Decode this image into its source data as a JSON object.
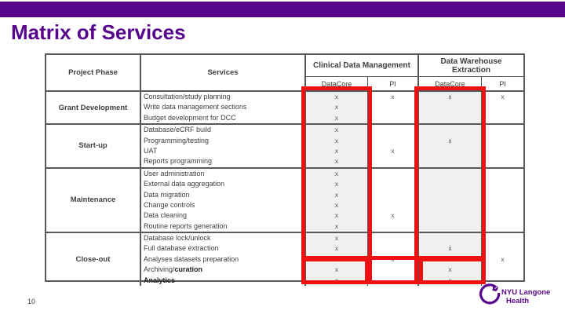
{
  "slide": {
    "title": "Matrix of Services",
    "page_number": "10",
    "brand_purple": "#57068C",
    "highlight_red": "#EE1111"
  },
  "logo": {
    "line1": "NYU Langone",
    "line2": "Health"
  },
  "table": {
    "headers": {
      "project_phase": "Project Phase",
      "services": "Services",
      "clinical_data_management": "Clinical Data Management",
      "data_warehouse_extraction": "Data Warehouse Extraction",
      "sub_columns": [
        "DataCore",
        "PI",
        "DataCore",
        "PI"
      ]
    },
    "mark_symbol": "x",
    "sections": [
      {
        "phase": "Grant Development",
        "rows": [
          {
            "service": "Consultation/study planning",
            "marks": [
              "x",
              "x",
              "x",
              "x"
            ]
          },
          {
            "service": "Write data management sections",
            "marks": [
              "x",
              "",
              "",
              ""
            ]
          },
          {
            "service": "Budget development for DCC",
            "marks": [
              "x",
              "",
              "",
              ""
            ]
          }
        ]
      },
      {
        "phase": "Start-up",
        "rows": [
          {
            "service": "Database/eCRF build",
            "marks": [
              "x",
              "",
              "",
              ""
            ]
          },
          {
            "service": "Programming/testing",
            "marks": [
              "x",
              "",
              "x",
              ""
            ]
          },
          {
            "service": "UAT",
            "marks": [
              "x",
              "x",
              "",
              ""
            ]
          },
          {
            "service": "Reports programming",
            "marks": [
              "x",
              "",
              "",
              ""
            ]
          }
        ]
      },
      {
        "phase": "Maintenance",
        "rows": [
          {
            "service": "User administration",
            "marks": [
              "x",
              "",
              "",
              ""
            ]
          },
          {
            "service": "External data aggregation",
            "marks": [
              "x",
              "",
              "",
              ""
            ]
          },
          {
            "service": "Data migration",
            "marks": [
              "x",
              "",
              "",
              ""
            ]
          },
          {
            "service": "Change controls",
            "marks": [
              "x",
              "",
              "",
              ""
            ]
          },
          {
            "service": "Data cleaning",
            "marks": [
              "x",
              "x",
              "",
              ""
            ]
          },
          {
            "service": "Routine reports generation",
            "marks": [
              "x",
              "",
              "",
              ""
            ]
          }
        ]
      },
      {
        "phase": "Close-out",
        "rows": [
          {
            "service": "Database lock/unlock",
            "marks": [
              "x",
              "",
              "",
              ""
            ]
          },
          {
            "service": "Full database extraction",
            "marks": [
              "x",
              "",
              "x",
              ""
            ]
          },
          {
            "service": "Analyses datasets preparation",
            "marks": [
              "x",
              "x",
              "x",
              "x"
            ]
          },
          {
            "service": "Archiving/",
            "service_bold": "curation",
            "marks": [
              "x",
              "",
              "x",
              ""
            ]
          },
          {
            "service": "",
            "service_bold": "Analytics",
            "marks": [
              "x",
              "",
              "x",
              ""
            ]
          }
        ]
      }
    ],
    "highlights": [
      "clinical-data-management-datacore-column",
      "data-warehouse-extraction-datacore-column",
      "close-out-archiving-analytics-cells"
    ]
  }
}
